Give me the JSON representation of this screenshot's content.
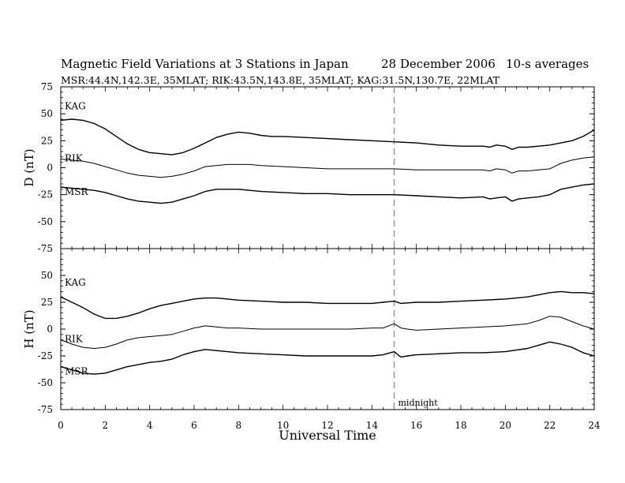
{
  "header": {
    "title": "Magnetic Field Variations at 3 Stations in Japan",
    "date": "28  December 2006",
    "averaging": "10-s averages",
    "stations_line": "MSR:44.4N,142.3E, 35MLAT;   RIK:43.5N,143.8E, 35MLAT;   KAG:31.5N,130.7E, 22MLAT"
  },
  "chart_data": [
    {
      "type": "line",
      "panel": "D",
      "ylabel": "D (nT)",
      "ylim": [
        -75,
        75
      ],
      "yticks": [
        -75,
        -50,
        -25,
        0,
        25,
        50,
        75
      ],
      "xlim": [
        0,
        24
      ],
      "annotation": "",
      "series": [
        {
          "name": "KAG",
          "x": [
            0,
            0.5,
            1,
            1.5,
            2,
            2.5,
            3,
            3.5,
            4,
            4.5,
            5,
            5.5,
            6,
            6.5,
            7,
            7.5,
            8,
            8.5,
            9,
            9.5,
            10,
            11,
            12,
            13,
            14,
            15,
            16,
            17,
            18,
            19,
            19.3,
            19.6,
            20,
            20.3,
            20.6,
            21,
            21.5,
            22,
            22.5,
            23,
            23.5,
            24
          ],
          "values": [
            44,
            45,
            44,
            41,
            36,
            29,
            22,
            17,
            14,
            13,
            12,
            14,
            18,
            23,
            28,
            31,
            33,
            32,
            30,
            29,
            29,
            28,
            27,
            26,
            25,
            24,
            23,
            21,
            20,
            20,
            19,
            21,
            20,
            17,
            19,
            19,
            20,
            21,
            23,
            25,
            29,
            35
          ]
        },
        {
          "name": "RIK",
          "x": [
            0,
            0.5,
            1,
            1.5,
            2,
            2.5,
            3,
            3.5,
            4,
            4.5,
            5,
            5.5,
            6,
            6.5,
            7,
            7.5,
            8,
            8.5,
            9,
            10,
            11,
            12,
            13,
            14,
            15,
            16,
            17,
            18,
            19,
            19.3,
            19.6,
            20,
            20.3,
            20.6,
            21,
            21.5,
            22,
            22.5,
            23,
            23.5,
            24
          ],
          "values": [
            8,
            7,
            6,
            4,
            1,
            -2,
            -5,
            -7,
            -8,
            -9,
            -8,
            -6,
            -3,
            1,
            2,
            3,
            3,
            3,
            2,
            1,
            0,
            -1,
            -1,
            -1,
            -1,
            -2,
            -2,
            -2,
            -2,
            -3,
            -1,
            -2,
            -5,
            -3,
            -3,
            -2,
            -1,
            4,
            7,
            9,
            10
          ]
        },
        {
          "name": "MSR",
          "x": [
            0,
            0.5,
            1,
            1.5,
            2,
            2.5,
            3,
            3.5,
            4,
            4.5,
            5,
            5.5,
            6,
            6.5,
            7,
            7.5,
            8,
            8.5,
            9,
            10,
            11,
            12,
            13,
            14,
            15,
            16,
            17,
            18,
            19,
            19.3,
            19.6,
            20,
            20.3,
            20.6,
            21,
            21.5,
            22,
            22.5,
            23,
            23.5,
            24
          ],
          "values": [
            -18,
            -19,
            -20,
            -21,
            -23,
            -26,
            -29,
            -31,
            -32,
            -33,
            -32,
            -29,
            -26,
            -22,
            -20,
            -20,
            -20,
            -21,
            -22,
            -23,
            -24,
            -24,
            -25,
            -25,
            -25,
            -26,
            -27,
            -28,
            -27,
            -29,
            -28,
            -27,
            -31,
            -29,
            -28,
            -27,
            -25,
            -20,
            -18,
            -16,
            -15
          ]
        }
      ]
    },
    {
      "type": "line",
      "panel": "H",
      "ylabel": "H (nT)",
      "ylim": [
        -75,
        75
      ],
      "yticks": [
        -75,
        -50,
        -25,
        0,
        25,
        50,
        75
      ],
      "xlim": [
        0,
        24
      ],
      "xticks": [
        0,
        2,
        4,
        6,
        8,
        10,
        12,
        14,
        16,
        18,
        20,
        22,
        24
      ],
      "xlabel": "Universal Time",
      "annotation": "midnight",
      "annotation_x": 15,
      "series": [
        {
          "name": "KAG",
          "x": [
            0,
            0.5,
            1,
            1.5,
            2,
            2.5,
            3,
            3.5,
            4,
            4.5,
            5,
            5.5,
            6,
            6.5,
            7,
            7.5,
            8,
            9,
            10,
            11,
            12,
            13,
            14,
            14.5,
            15,
            15.3,
            16,
            17,
            18,
            19,
            20,
            21,
            21.5,
            22,
            22.5,
            23,
            23.5,
            24
          ],
          "values": [
            30,
            25,
            20,
            14,
            10,
            10,
            12,
            15,
            19,
            22,
            24,
            26,
            28,
            29,
            29,
            28,
            27,
            26,
            25,
            25,
            24,
            24,
            24,
            25,
            26,
            24,
            25,
            25,
            26,
            27,
            28,
            30,
            32,
            34,
            35,
            34,
            34,
            33
          ]
        },
        {
          "name": "RIK",
          "x": [
            0,
            0.5,
            1,
            1.5,
            2,
            2.5,
            3,
            3.5,
            4,
            4.5,
            5,
            5.5,
            6,
            6.5,
            7,
            7.5,
            8,
            9,
            10,
            11,
            12,
            13,
            14,
            14.5,
            15,
            15.3,
            15.6,
            16,
            17,
            18,
            19,
            20,
            21,
            21.5,
            22,
            22.5,
            23,
            23.5,
            24
          ],
          "values": [
            -10,
            -14,
            -17,
            -18,
            -17,
            -14,
            -10,
            -8,
            -7,
            -6,
            -5,
            -2,
            1,
            3,
            2,
            1,
            1,
            0,
            0,
            0,
            0,
            0,
            1,
            1,
            5,
            1,
            0,
            -1,
            0,
            1,
            2,
            3,
            5,
            8,
            12,
            11,
            7,
            3,
            0
          ]
        },
        {
          "name": "MSR",
          "x": [
            0,
            0.5,
            1,
            1.5,
            2,
            2.5,
            3,
            3.5,
            4,
            4.5,
            5,
            5.5,
            6,
            6.5,
            7,
            7.5,
            8,
            9,
            10,
            11,
            12,
            13,
            14,
            14.5,
            15,
            15.3,
            15.6,
            16,
            17,
            18,
            19,
            20,
            21,
            21.5,
            22,
            22.5,
            23,
            23.5,
            24
          ],
          "values": [
            -35,
            -38,
            -41,
            -42,
            -41,
            -38,
            -35,
            -33,
            -31,
            -30,
            -28,
            -24,
            -21,
            -19,
            -20,
            -21,
            -22,
            -23,
            -24,
            -25,
            -25,
            -25,
            -25,
            -24,
            -21,
            -26,
            -25,
            -24,
            -23,
            -22,
            -22,
            -21,
            -18,
            -15,
            -12,
            -14,
            -17,
            -22,
            -25
          ]
        }
      ]
    }
  ]
}
